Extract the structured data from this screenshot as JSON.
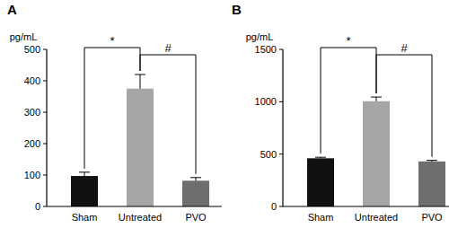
{
  "chart_data": [
    {
      "type": "bar",
      "title": "A",
      "y_label": "pg/mL",
      "categories": [
        "Sham",
        "Untreated",
        "PVO"
      ],
      "values": [
        97,
        375,
        82
      ],
      "errors": [
        12,
        45,
        10
      ],
      "colors": [
        "#111111",
        "#a6a6a6",
        "#6e6e6e"
      ],
      "ylim": [
        0,
        500
      ],
      "yticks": [
        0,
        100,
        200,
        300,
        400,
        500
      ],
      "annotations": [
        "*",
        "#"
      ],
      "grid": false
    },
    {
      "type": "bar",
      "title": "B",
      "y_label": "pg/mL",
      "categories": [
        "Sham",
        "Untreated",
        "PVO"
      ],
      "values": [
        460,
        1005,
        430
      ],
      "errors": [
        10,
        40,
        10
      ],
      "colors": [
        "#111111",
        "#a6a6a6",
        "#6e6e6e"
      ],
      "ylim": [
        0,
        1500
      ],
      "yticks": [
        0,
        500,
        1000,
        1500
      ],
      "annotations": [
        "*",
        "#"
      ],
      "grid": false
    }
  ]
}
